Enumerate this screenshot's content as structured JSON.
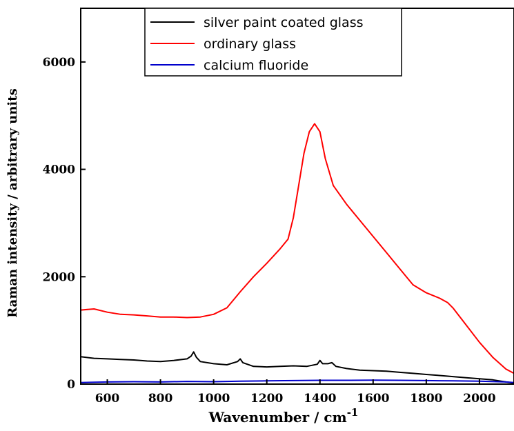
{
  "chart_data": {
    "type": "line",
    "title": "",
    "xlabel": "Wavenumber / cm",
    "xlabel_superscript": "-1",
    "ylabel": "Raman intensity / arbitrary units",
    "xlim": [
      500,
      2130
    ],
    "ylim": [
      0,
      7000
    ],
    "xticks": [
      600,
      800,
      1000,
      1200,
      1400,
      1600,
      1800,
      2000
    ],
    "yticks": [
      0,
      2000,
      4000,
      6000
    ],
    "legend_position": "top-center",
    "series": [
      {
        "name": "silver paint coated glass",
        "color": "#000000",
        "x": [
          500,
          550,
          600,
          650,
          700,
          750,
          800,
          850,
          900,
          915,
          925,
          935,
          950,
          1000,
          1050,
          1090,
          1100,
          1110,
          1150,
          1200,
          1250,
          1300,
          1350,
          1390,
          1400,
          1410,
          1430,
          1445,
          1460,
          1500,
          1550,
          1600,
          1650,
          1700,
          1750,
          1800,
          1850,
          1900,
          1950,
          2000,
          2050,
          2100,
          2130
        ],
        "values": [
          510,
          480,
          470,
          460,
          450,
          430,
          420,
          440,
          470,
          520,
          600,
          500,
          420,
          380,
          360,
          420,
          470,
          400,
          330,
          320,
          330,
          340,
          330,
          370,
          440,
          380,
          380,
          400,
          330,
          290,
          260,
          250,
          240,
          220,
          200,
          180,
          160,
          140,
          120,
          100,
          80,
          40,
          20
        ]
      },
      {
        "name": "ordinary glass",
        "color": "#ff0000",
        "x": [
          500,
          550,
          600,
          650,
          700,
          750,
          800,
          850,
          900,
          950,
          1000,
          1050,
          1100,
          1150,
          1200,
          1250,
          1280,
          1300,
          1320,
          1340,
          1360,
          1380,
          1400,
          1420,
          1450,
          1500,
          1550,
          1600,
          1650,
          1700,
          1750,
          1800,
          1850,
          1880,
          1900,
          1950,
          2000,
          2050,
          2100,
          2130
        ],
        "values": [
          1380,
          1400,
          1340,
          1300,
          1290,
          1270,
          1250,
          1250,
          1240,
          1250,
          1300,
          1420,
          1720,
          2000,
          2250,
          2520,
          2700,
          3100,
          3700,
          4300,
          4700,
          4850,
          4700,
          4200,
          3700,
          3350,
          3050,
          2750,
          2450,
          2150,
          1850,
          1700,
          1600,
          1520,
          1420,
          1100,
          780,
          500,
          280,
          200
        ]
      },
      {
        "name": "calcium fluoride",
        "color": "#0000cc",
        "x": [
          500,
          600,
          700,
          800,
          900,
          1000,
          1100,
          1200,
          1300,
          1400,
          1500,
          1600,
          1700,
          1800,
          1900,
          2000,
          2100,
          2130
        ],
        "values": [
          30,
          40,
          45,
          40,
          50,
          45,
          55,
          60,
          65,
          70,
          70,
          75,
          70,
          65,
          60,
          55,
          40,
          30
        ]
      }
    ]
  }
}
